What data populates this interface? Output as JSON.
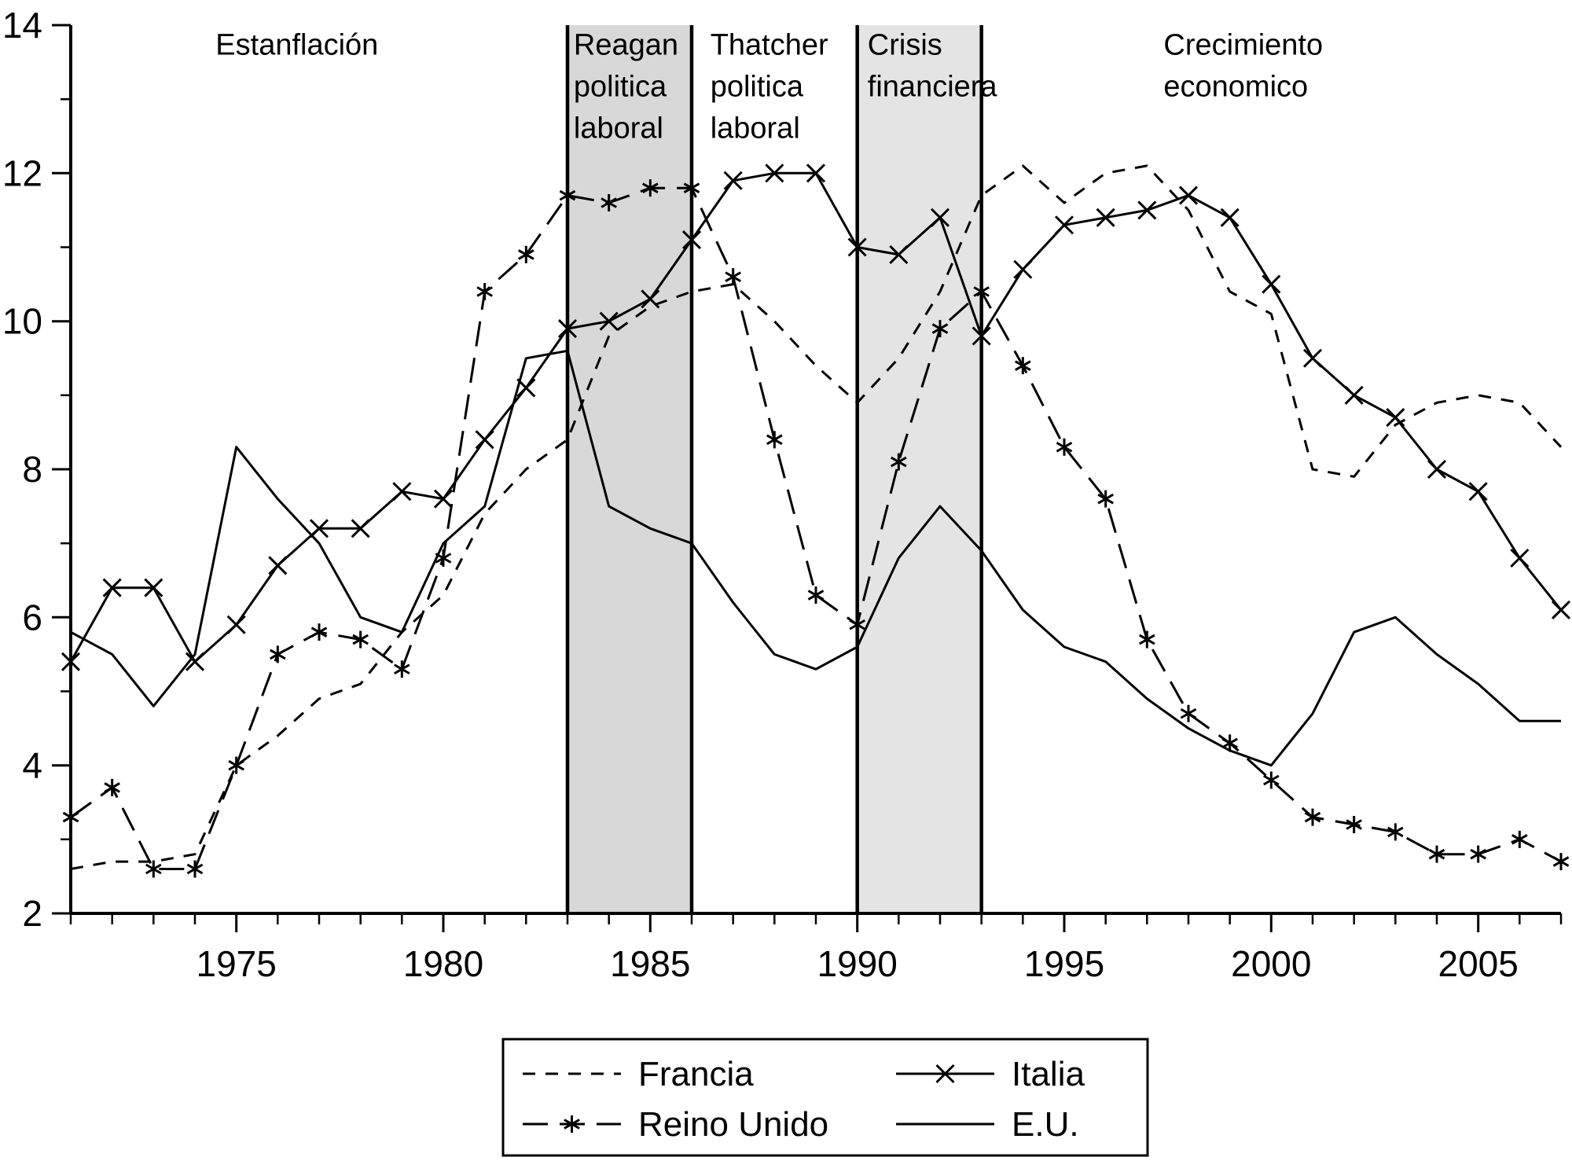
{
  "figure": {
    "background": "#ffffff",
    "foreground": "#000000"
  },
  "chart_data": {
    "type": "line",
    "title": "",
    "xlabel": "",
    "ylabel": "",
    "xlim": [
      1971,
      2007
    ],
    "ylim": [
      2,
      14
    ],
    "xticks_labeled": [
      1975,
      1980,
      1985,
      1990,
      1995,
      2000,
      2005
    ],
    "yticks": [
      2,
      4,
      6,
      8,
      10,
      12,
      14
    ],
    "yticks_minor": [
      3,
      5,
      7,
      9,
      11,
      13
    ],
    "x": [
      1971,
      1972,
      1973,
      1974,
      1975,
      1976,
      1977,
      1978,
      1979,
      1980,
      1981,
      1982,
      1983,
      1984,
      1985,
      1986,
      1987,
      1988,
      1989,
      1990,
      1991,
      1992,
      1993,
      1994,
      1995,
      1996,
      1997,
      1998,
      1999,
      2000,
      2001,
      2002,
      2003,
      2004,
      2005,
      2006,
      2007
    ],
    "series": [
      {
        "name": "Francia",
        "line": "dashed",
        "marker": "none",
        "color": "#000000",
        "values": [
          2.6,
          2.7,
          2.7,
          2.8,
          4.0,
          4.4,
          4.9,
          5.1,
          5.8,
          6.3,
          7.4,
          8.0,
          8.4,
          9.8,
          10.2,
          10.4,
          10.5,
          10.0,
          9.4,
          8.9,
          9.5,
          10.4,
          11.7,
          12.1,
          11.6,
          12.0,
          12.1,
          11.5,
          10.4,
          10.1,
          8.0,
          7.9,
          8.6,
          8.9,
          9.0,
          8.9,
          8.3
        ]
      },
      {
        "name": "Reino Unido",
        "line": "longdash",
        "marker": "asterisk",
        "color": "#000000",
        "values": [
          3.3,
          3.7,
          2.6,
          2.6,
          4.0,
          5.5,
          5.8,
          5.7,
          5.3,
          6.8,
          10.4,
          10.9,
          11.7,
          11.6,
          11.8,
          11.8,
          10.6,
          8.4,
          6.3,
          5.9,
          8.1,
          9.9,
          10.4,
          9.4,
          8.3,
          7.6,
          5.7,
          4.7,
          4.3,
          3.8,
          3.3,
          3.2,
          3.1,
          2.8,
          2.8,
          3.0,
          2.7
        ]
      },
      {
        "name": "Italia",
        "line": "solid",
        "marker": "x",
        "color": "#000000",
        "values": [
          5.4,
          6.4,
          6.4,
          5.4,
          5.9,
          6.7,
          7.2,
          7.2,
          7.7,
          7.6,
          8.4,
          9.1,
          9.9,
          10.0,
          10.3,
          11.1,
          11.9,
          12.0,
          12.0,
          11.0,
          10.9,
          11.4,
          9.8,
          10.7,
          11.3,
          11.4,
          11.5,
          11.7,
          11.4,
          10.5,
          9.5,
          9.0,
          8.7,
          8.0,
          7.7,
          6.8,
          6.1
        ]
      },
      {
        "name": "E.U.",
        "line": "solid",
        "marker": "none",
        "color": "#000000",
        "values": [
          5.8,
          5.5,
          4.8,
          5.5,
          8.3,
          7.6,
          7.0,
          6.0,
          5.8,
          7.0,
          7.5,
          9.5,
          9.6,
          7.5,
          7.2,
          7.0,
          6.2,
          5.5,
          5.3,
          5.6,
          6.8,
          7.5,
          6.9,
          6.1,
          5.6,
          5.4,
          4.9,
          4.5,
          4.2,
          4.0,
          4.7,
          5.8,
          6.0,
          5.5,
          5.1,
          4.6,
          4.6
        ]
      }
    ],
    "shaded_regions": [
      {
        "x0": 1983,
        "x1": 1986,
        "fill": "#d8d8d8"
      },
      {
        "x0": 1990,
        "x1": 1993,
        "fill": "#e4e4e4"
      }
    ],
    "vlines": {
      "x": [
        1983,
        1986,
        1990,
        1993
      ],
      "color": "#000000"
    },
    "annotations": [
      {
        "lines": [
          "Estanflación"
        ],
        "x": 1974.5,
        "y": 13.6
      },
      {
        "lines": [
          "Reagan",
          "politica",
          "laboral"
        ],
        "x": 1983.15,
        "y": 13.6
      },
      {
        "lines": [
          "Thatcher",
          "politica",
          "laboral"
        ],
        "x": 1986.45,
        "y": 13.6
      },
      {
        "lines": [
          "Crisis",
          "financiera"
        ],
        "x": 1990.25,
        "y": 13.6
      },
      {
        "lines": [
          "Crecimiento",
          "economico"
        ],
        "x": 1997.4,
        "y": 13.6
      }
    ],
    "legend": {
      "border_color": "#000000",
      "background": "#ffffff",
      "entries": [
        {
          "label": "Francia",
          "series": "Francia",
          "col": 0,
          "row": 0
        },
        {
          "label": "Reino Unido",
          "series": "Reino Unido",
          "col": 0,
          "row": 1
        },
        {
          "label": "Italia",
          "series": "Italia",
          "col": 1,
          "row": 0
        },
        {
          "label": "E.U.",
          "series": "E.U.",
          "col": 1,
          "row": 1
        }
      ]
    }
  }
}
